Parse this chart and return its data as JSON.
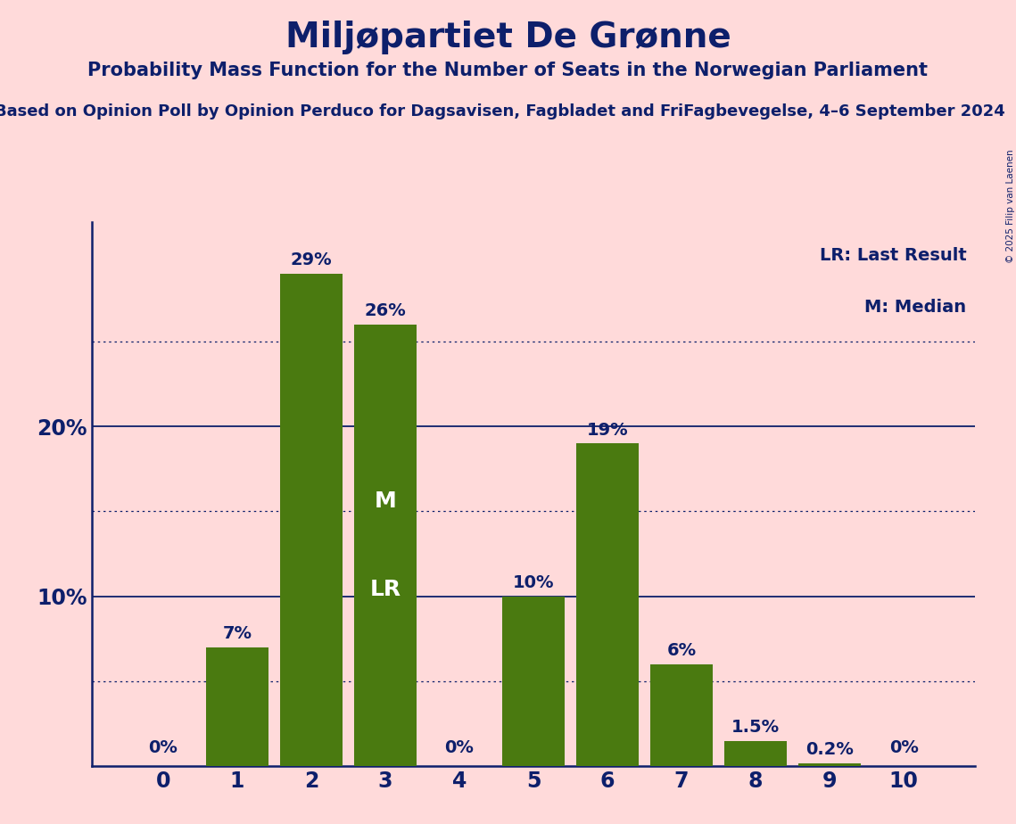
{
  "title": "Miljøpartiet De Grønne",
  "subtitle": "Probability Mass Function for the Number of Seats in the Norwegian Parliament",
  "source_line": "Based on Opinion Poll by Opinion Perduco for Dagsavisen, Fagbladet and FriFagbevegelse, 4–6 September 2024",
  "copyright": "© 2025 Filip van Laenen",
  "categories": [
    0,
    1,
    2,
    3,
    4,
    5,
    6,
    7,
    8,
    9,
    10
  ],
  "values": [
    0.0,
    7.0,
    29.0,
    26.0,
    0.0,
    10.0,
    19.0,
    6.0,
    1.5,
    0.2,
    0.0
  ],
  "bar_color": "#4a7a10",
  "background_color": "#FFDADA",
  "title_color": "#0d1f6b",
  "axis_color": "#0d1f6b",
  "solid_gridlines": [
    10,
    20
  ],
  "dotted_gridlines": [
    5,
    15,
    25
  ],
  "ylim_max": 32,
  "yticks_labels": [
    "10%",
    "20%"
  ],
  "yticks_values": [
    10,
    20
  ],
  "median_bar_idx": 3,
  "legend_lines": [
    "LR: Last Result",
    "M: Median"
  ],
  "label_above_color": "#0d1f6b",
  "label_inside_color": "#ffffff"
}
